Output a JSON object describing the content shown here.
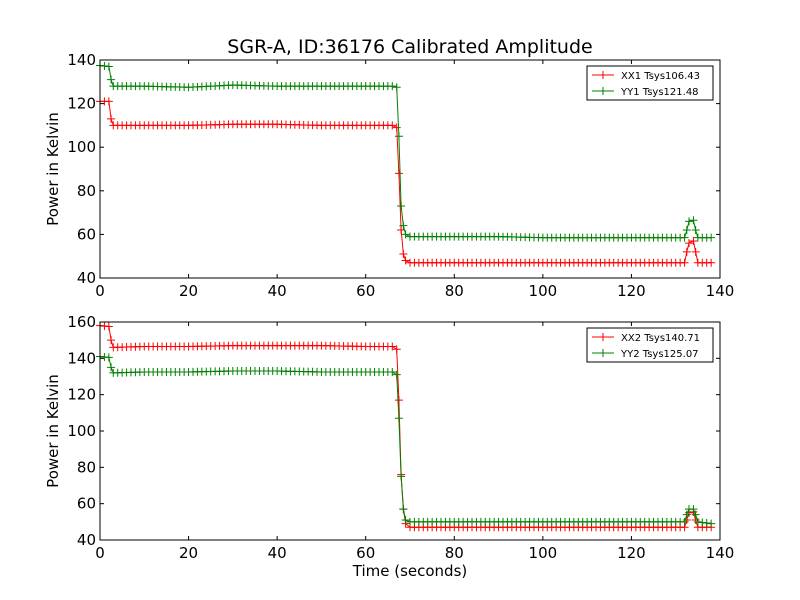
{
  "chart_data": {
    "title": "SGR-A, ID:36176 Calibrated Amplitude",
    "xlabel": "Time (seconds)",
    "colors": {
      "XX": "#ff0000",
      "YY": "#008000"
    },
    "charts": [
      {
        "type": "line",
        "ylabel": "Power in Kelvin",
        "xlim": [
          0,
          140
        ],
        "ylim": [
          40,
          140
        ],
        "xticks": [
          0,
          20,
          40,
          60,
          80,
          100,
          120,
          140
        ],
        "yticks": [
          40,
          60,
          80,
          100,
          120,
          140
        ],
        "legend_position": "top-right",
        "grid": false,
        "series": [
          {
            "name": "XX1 Tsys106.43",
            "color": "#ff0000",
            "points": [
              [
                0,
                121
              ],
              [
                2,
                121
              ],
              [
                2.5,
                113
              ],
              [
                3,
                110
              ],
              [
                10,
                110
              ],
              [
                20,
                110
              ],
              [
                30,
                110.5
              ],
              [
                40,
                110.5
              ],
              [
                50,
                110
              ],
              [
                60,
                110
              ],
              [
                66,
                110
              ],
              [
                67,
                109
              ],
              [
                67.5,
                88
              ],
              [
                68,
                62
              ],
              [
                68.5,
                51
              ],
              [
                69,
                48
              ],
              [
                70,
                47
              ],
              [
                80,
                47
              ],
              [
                90,
                47
              ],
              [
                100,
                47
              ],
              [
                110,
                47
              ],
              [
                120,
                47
              ],
              [
                130,
                47
              ],
              [
                132,
                47
              ],
              [
                132.5,
                52
              ],
              [
                133,
                56
              ],
              [
                134,
                57
              ],
              [
                134.5,
                52
              ],
              [
                135,
                47
              ],
              [
                138,
                47
              ]
            ]
          },
          {
            "name": "YY1 Tsys121.48",
            "color": "#008000",
            "points": [
              [
                0,
                137.5
              ],
              [
                2,
                137
              ],
              [
                2.5,
                131
              ],
              [
                3,
                128
              ],
              [
                10,
                128
              ],
              [
                20,
                127.5
              ],
              [
                30,
                128.5
              ],
              [
                40,
                128
              ],
              [
                50,
                128
              ],
              [
                60,
                128
              ],
              [
                66,
                128
              ],
              [
                67,
                127.5
              ],
              [
                67.5,
                105
              ],
              [
                68,
                73
              ],
              [
                68.5,
                64
              ],
              [
                69,
                60
              ],
              [
                70,
                59
              ],
              [
                80,
                59
              ],
              [
                90,
                59
              ],
              [
                100,
                58.5
              ],
              [
                110,
                58.5
              ],
              [
                120,
                58.5
              ],
              [
                130,
                58.5
              ],
              [
                132,
                58.5
              ],
              [
                132.5,
                62
              ],
              [
                133,
                66
              ],
              [
                134,
                66.5
              ],
              [
                134.5,
                62
              ],
              [
                135,
                58.5
              ],
              [
                138,
                58.5
              ]
            ]
          }
        ]
      },
      {
        "type": "line",
        "ylabel": "Power in Kelvin",
        "xlabel": "Time (seconds)",
        "xlim": [
          0,
          140
        ],
        "ylim": [
          40,
          160
        ],
        "xticks": [
          0,
          20,
          40,
          60,
          80,
          100,
          120,
          140
        ],
        "yticks": [
          40,
          60,
          80,
          100,
          120,
          140,
          160
        ],
        "legend_position": "top-right",
        "grid": false,
        "series": [
          {
            "name": "XX2 Tsys140.71",
            "color": "#ff0000",
            "points": [
              [
                0,
                158
              ],
              [
                2,
                157.5
              ],
              [
                2.5,
                150
              ],
              [
                3,
                146
              ],
              [
                10,
                146.5
              ],
              [
                20,
                146.5
              ],
              [
                30,
                147
              ],
              [
                40,
                147
              ],
              [
                50,
                147
              ],
              [
                60,
                146.5
              ],
              [
                66,
                146.5
              ],
              [
                67,
                145
              ],
              [
                67.5,
                117
              ],
              [
                68,
                76
              ],
              [
                68.5,
                57
              ],
              [
                69,
                49
              ],
              [
                70,
                47
              ],
              [
                80,
                47
              ],
              [
                90,
                47
              ],
              [
                100,
                47
              ],
              [
                110,
                47
              ],
              [
                120,
                47
              ],
              [
                130,
                47
              ],
              [
                132,
                47
              ],
              [
                132.5,
                51
              ],
              [
                133,
                55
              ],
              [
                134,
                55.5
              ],
              [
                134.5,
                51
              ],
              [
                135,
                47
              ],
              [
                138,
                47
              ]
            ]
          },
          {
            "name": "YY2 Tsys125.07",
            "color": "#008000",
            "points": [
              [
                0,
                141
              ],
              [
                2,
                140.5
              ],
              [
                2.5,
                135
              ],
              [
                3,
                132
              ],
              [
                10,
                132.5
              ],
              [
                20,
                132.5
              ],
              [
                30,
                133
              ],
              [
                40,
                133
              ],
              [
                50,
                132.5
              ],
              [
                60,
                132.5
              ],
              [
                66,
                132.5
              ],
              [
                67,
                131
              ],
              [
                67.5,
                107
              ],
              [
                68,
                75
              ],
              [
                68.5,
                57
              ],
              [
                69,
                51
              ],
              [
                70,
                50
              ],
              [
                80,
                50
              ],
              [
                90,
                50
              ],
              [
                100,
                50
              ],
              [
                110,
                50
              ],
              [
                120,
                50
              ],
              [
                130,
                50
              ],
              [
                132,
                50
              ],
              [
                132.5,
                54
              ],
              [
                133,
                57
              ],
              [
                134,
                57
              ],
              [
                134.5,
                54
              ],
              [
                135,
                50
              ],
              [
                138,
                49
              ]
            ]
          }
        ]
      }
    ]
  }
}
